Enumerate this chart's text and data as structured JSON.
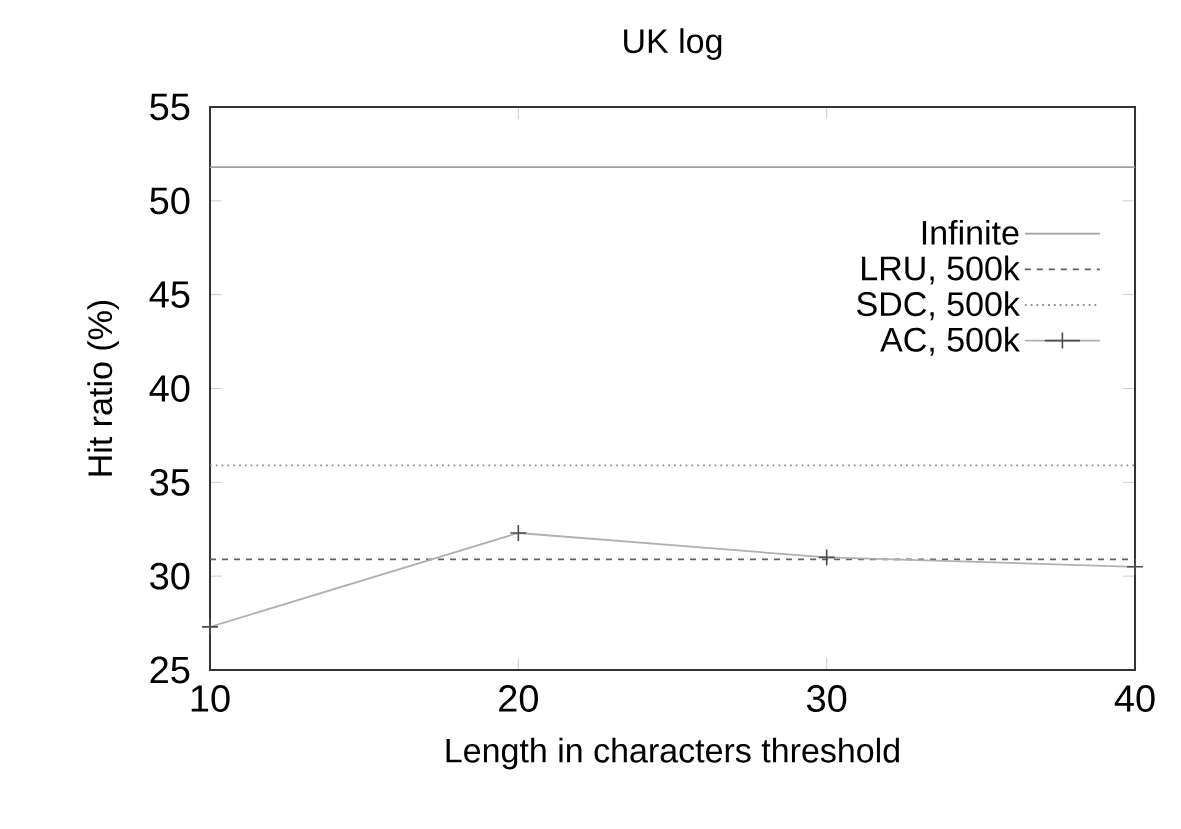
{
  "chart_data": {
    "type": "line",
    "title": "UK log",
    "xlabel": "Length in characters threshold",
    "ylabel": "Hit ratio (%)",
    "x": [
      10,
      20,
      30,
      40
    ],
    "xlim": [
      10,
      40
    ],
    "xticks": [
      10,
      20,
      30,
      40
    ],
    "ylim": [
      25,
      55
    ],
    "yticks": [
      25,
      30,
      35,
      40,
      45,
      50,
      55
    ],
    "legend": "right",
    "series": [
      {
        "name": "Infinite",
        "color": "#a0a0a0",
        "line_style": "solid",
        "marker": "none",
        "values": [
          51.8,
          51.8,
          51.8,
          51.8
        ]
      },
      {
        "name": "LRU, 500k",
        "color": "#606060",
        "line_style": "dashed",
        "marker": "none",
        "values": [
          30.9,
          30.9,
          30.9,
          30.9
        ]
      },
      {
        "name": "SDC, 500k",
        "color": "#909090",
        "line_style": "dotted",
        "marker": "none",
        "values": [
          35.9,
          35.9,
          35.9,
          35.9
        ]
      },
      {
        "name": "AC, 500k",
        "color": "#b0b0b0",
        "line_style": "solid",
        "marker": "cross",
        "values": [
          27.3,
          32.3,
          31.0,
          30.5
        ]
      }
    ]
  }
}
